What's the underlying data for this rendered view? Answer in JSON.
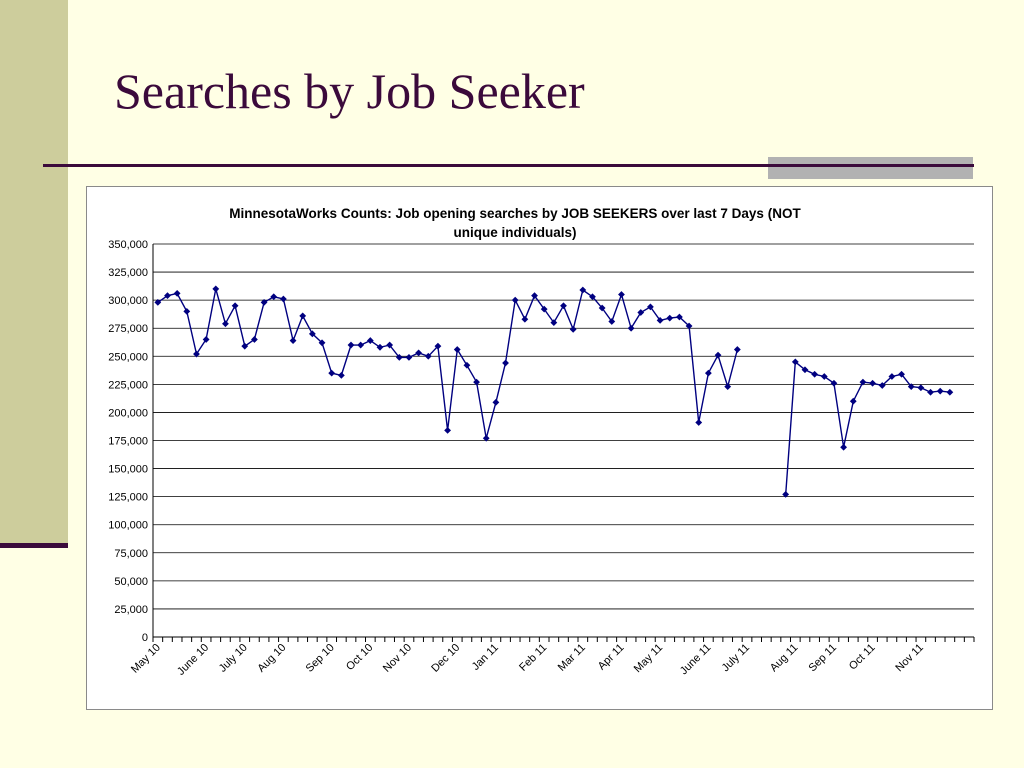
{
  "slide": {
    "title": "Searches by Job Seeker"
  },
  "colors": {
    "background": "#ffffe5",
    "sidebar": "#cdcd9c",
    "accent_dark": "#3b0a3b",
    "accent_gray": "#b2b2b2",
    "series_line": "#000080"
  },
  "chart_data": {
    "type": "line",
    "title": "MinnesotaWorks Counts: Job opening searches by JOB SEEKERS over last 7 Days (NOT unique individuals)",
    "title_lines": [
      "MinnesotaWorks Counts: Job opening searches by JOB SEEKERS over last 7 Days (NOT",
      "unique individuals)"
    ],
    "xlabel": "",
    "ylabel": "",
    "ylim": [
      0,
      350000
    ],
    "y_ticks": [
      0,
      25000,
      50000,
      75000,
      100000,
      125000,
      150000,
      175000,
      200000,
      225000,
      250000,
      275000,
      300000,
      325000,
      350000
    ],
    "y_tick_labels": [
      "0",
      "25,000",
      "50,000",
      "75,000",
      "100,000",
      "125,000",
      "150,000",
      "175,000",
      "200,000",
      "225,000",
      "250,000",
      "275,000",
      "300,000",
      "325,000",
      "350,000"
    ],
    "x_tick_count": 85,
    "x_tick_labels": [
      {
        "label": "May 10",
        "index": 0
      },
      {
        "label": "June 10",
        "index": 5
      },
      {
        "label": "July 10",
        "index": 9
      },
      {
        "label": "Aug 10",
        "index": 13
      },
      {
        "label": "Sep 10",
        "index": 18
      },
      {
        "label": "Oct 10",
        "index": 22
      },
      {
        "label": "Nov 10",
        "index": 26
      },
      {
        "label": "Dec 10",
        "index": 31
      },
      {
        "label": "Jan 11",
        "index": 35
      },
      {
        "label": "Feb 11",
        "index": 40
      },
      {
        "label": "Mar 11",
        "index": 44
      },
      {
        "label": "Apr 11",
        "index": 48
      },
      {
        "label": "May 11",
        "index": 52
      },
      {
        "label": "June 11",
        "index": 57
      },
      {
        "label": "July 11",
        "index": 61
      },
      {
        "label": "Aug 11",
        "index": 66
      },
      {
        "label": "Sep 11",
        "index": 70
      },
      {
        "label": "Oct 11",
        "index": 74
      },
      {
        "label": "Nov 11",
        "index": 79
      }
    ],
    "grid": true,
    "legend": "none",
    "series": [
      {
        "values": [
          298000,
          304000,
          306000,
          290000,
          252000,
          265000,
          310000,
          279000,
          295000,
          259000,
          265000,
          298000,
          303000,
          301000,
          264000,
          286000,
          270000,
          262000,
          235000,
          233000,
          260000,
          260000,
          264000,
          258000,
          260000,
          249000,
          249000,
          253000,
          250000,
          259000,
          184000,
          256000,
          242000,
          227000,
          177000,
          209000,
          244000,
          300000,
          283000,
          304000,
          292000,
          280000,
          295000,
          274000,
          309000,
          303000,
          293000,
          281000,
          305000,
          275000,
          289000,
          294000,
          282000,
          284000,
          285000,
          277000,
          191000,
          235000,
          251000,
          223000,
          256000,
          null,
          null,
          null,
          null,
          127000,
          245000,
          238000,
          234000,
          232000,
          226000,
          169000,
          210000,
          227000,
          226000,
          224000,
          232000,
          234000,
          223000,
          222000,
          218000,
          219000,
          218000
        ]
      }
    ]
  }
}
